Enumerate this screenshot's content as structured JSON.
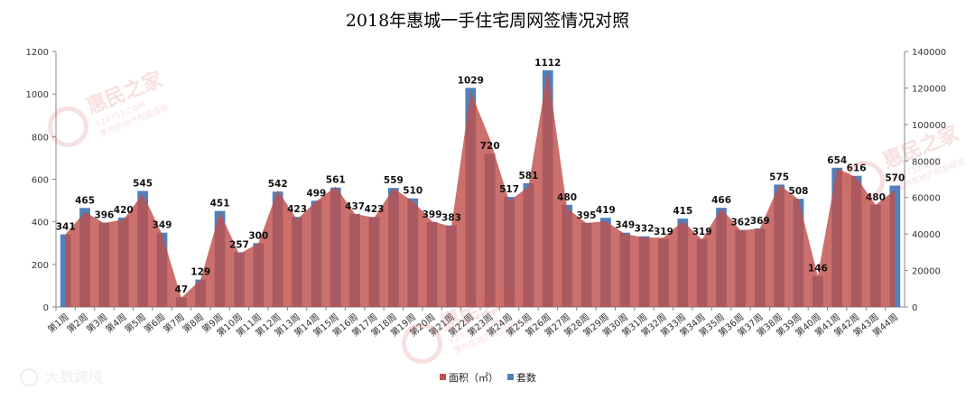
{
  "chart_data": {
    "type": "bar",
    "title": "2018年惠城一手住宅周网签情况对照",
    "xlabel": "",
    "ylabel": "",
    "ylim": [
      0,
      1200
    ],
    "y2lim": [
      0,
      140000
    ],
    "yticks": [
      "0",
      "200",
      "400",
      "600",
      "800",
      "1000",
      "1200"
    ],
    "y2ticks": [
      "0",
      "20000",
      "40000",
      "60000",
      "80000",
      "100000",
      "120000",
      "140000"
    ],
    "categories": [
      "第1周",
      "第2周",
      "第3周",
      "第4周",
      "第5周",
      "第6周",
      "第7周",
      "第8周",
      "第9周",
      "第10周",
      "第11周",
      "第12周",
      "第13周",
      "第14周",
      "第15周",
      "第16周",
      "第17周",
      "第18周",
      "第19周",
      "第20周",
      "第21周",
      "第22周",
      "第23周",
      "第24周",
      "第25周",
      "第26周",
      "第27周",
      "第28周",
      "第29周",
      "第30周",
      "第31周",
      "第32周",
      "第33周",
      "第34周",
      "第35周",
      "第36周",
      "第37周",
      "第38周",
      "第39周",
      "第40周",
      "第41周",
      "第42周",
      "第43周",
      "第44周"
    ],
    "series": [
      {
        "name": "面积（㎡）",
        "type": "area",
        "axis": "right",
        "color": "#c0504d",
        "values": [
          40000,
          52000,
          46000,
          48000,
          62000,
          40000,
          5000,
          15000,
          52000,
          29000,
          35000,
          64000,
          48000,
          58000,
          66000,
          51000,
          49000,
          65000,
          58000,
          47000,
          44000,
          118000,
          92000,
          58000,
          66000,
          130000,
          54000,
          46000,
          47000,
          40000,
          38000,
          38000,
          47000,
          37000,
          54000,
          42000,
          43000,
          67000,
          59000,
          17000,
          76000,
          71000,
          56000,
          64000
        ]
      },
      {
        "name": "套数",
        "type": "bar",
        "axis": "left",
        "color": "#4f81bd",
        "values": [
          341,
          465,
          396,
          420,
          545,
          349,
          47,
          129,
          451,
          257,
          300,
          542,
          423,
          499,
          561,
          437,
          423,
          559,
          510,
          399,
          383,
          1029,
          720,
          517,
          581,
          1112,
          480,
          395,
          419,
          349,
          332,
          319,
          415,
          319,
          466,
          362,
          369,
          575,
          508,
          146,
          654,
          616,
          480,
          570
        ]
      }
    ],
    "legend": "bottom",
    "grid": false
  },
  "watermarks": {
    "brand_name": "惠民之家",
    "brand_url": "FZ0752.COM",
    "brand_sub": "惠州房地产权威媒体",
    "source": "大数跨境"
  },
  "colors": {
    "bar": "#4f81bd",
    "area": "#c0504d",
    "title": "#000000"
  }
}
